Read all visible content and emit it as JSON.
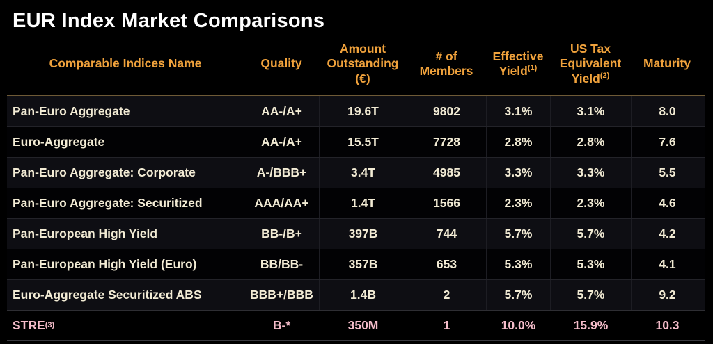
{
  "title": "EUR Index Market Comparisons",
  "colors": {
    "background": "#000000",
    "title_text": "#FFFFFF",
    "header_text": "#F0A23C",
    "row_text": "#F2EBD4",
    "highlight_row_text": "#F5BDCA",
    "header_rule": "#6E5A36"
  },
  "table": {
    "headers": [
      {
        "label": "Comparable Indices Name",
        "sup": ""
      },
      {
        "label": "Quality",
        "sup": ""
      },
      {
        "label": "Amount\nOutstanding\n(€)",
        "sup": ""
      },
      {
        "label": "# of\nMembers",
        "sup": ""
      },
      {
        "label": "Effective\nYield",
        "sup": "(1)"
      },
      {
        "label": "US Tax\nEquivalent\nYield",
        "sup": "(2)"
      },
      {
        "label": "Maturity",
        "sup": ""
      }
    ],
    "rows": [
      {
        "name": "Pan-Euro Aggregate",
        "name_sup": "",
        "quality": "AA-/A+",
        "amount_outstanding": "19.6T",
        "members": "9802",
        "effective_yield": "3.1%",
        "us_tax_equivalent_yield": "3.1%",
        "maturity": "8.0",
        "highlight": false
      },
      {
        "name": "Euro-Aggregate",
        "name_sup": "",
        "quality": "AA-/A+",
        "amount_outstanding": "15.5T",
        "members": "7728",
        "effective_yield": "2.8%",
        "us_tax_equivalent_yield": "2.8%",
        "maturity": "7.6",
        "highlight": false
      },
      {
        "name": "Pan-Euro Aggregate: Corporate",
        "name_sup": "",
        "quality": "A-/BBB+",
        "amount_outstanding": "3.4T",
        "members": "4985",
        "effective_yield": "3.3%",
        "us_tax_equivalent_yield": "3.3%",
        "maturity": "5.5",
        "highlight": false
      },
      {
        "name": "Pan-Euro Aggregate: Securitized",
        "name_sup": "",
        "quality": "AAA/AA+",
        "amount_outstanding": "1.4T",
        "members": "1566",
        "effective_yield": "2.3%",
        "us_tax_equivalent_yield": "2.3%",
        "maturity": "4.6",
        "highlight": false
      },
      {
        "name": "Pan-European High Yield",
        "name_sup": "",
        "quality": "BB-/B+",
        "amount_outstanding": "397B",
        "members": "744",
        "effective_yield": "5.7%",
        "us_tax_equivalent_yield": "5.7%",
        "maturity": "4.2",
        "highlight": false
      },
      {
        "name": "Pan-European High Yield (Euro)",
        "name_sup": "",
        "quality": "BB/BB-",
        "amount_outstanding": "357B",
        "members": "653",
        "effective_yield": "5.3%",
        "us_tax_equivalent_yield": "5.3%",
        "maturity": "4.1",
        "highlight": false
      },
      {
        "name": "Euro-Aggregate Securitized ABS",
        "name_sup": "",
        "quality": "BBB+/BBB",
        "amount_outstanding": "1.4B",
        "members": "2",
        "effective_yield": "5.7%",
        "us_tax_equivalent_yield": "5.7%",
        "maturity": "9.2",
        "highlight": false
      },
      {
        "name": "STRE",
        "name_sup": "(3)",
        "quality": "B-*",
        "amount_outstanding": "350M",
        "members": "1",
        "effective_yield": "10.0%",
        "us_tax_equivalent_yield": "15.9%",
        "maturity": "10.3",
        "highlight": true
      }
    ]
  }
}
